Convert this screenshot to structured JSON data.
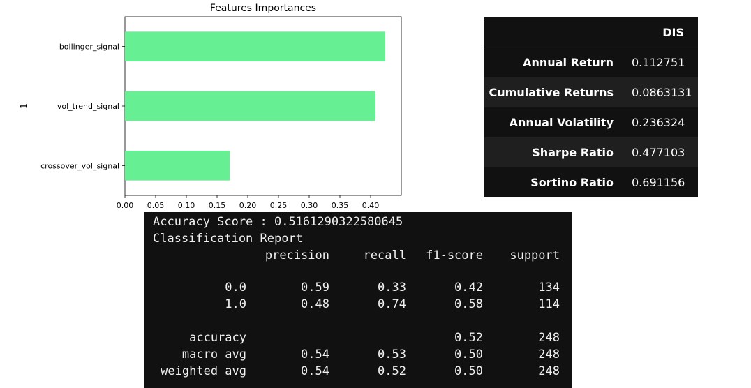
{
  "chart_data": {
    "type": "bar",
    "orientation": "horizontal",
    "title": "Features Importances",
    "ylabel": "1",
    "xlabel": "",
    "categories": [
      "bollinger_signal",
      "vol_trend_signal",
      "crossover_vol_signal"
    ],
    "values": [
      0.424,
      0.408,
      0.171
    ],
    "xlim": [
      0.0,
      0.45
    ],
    "xticks": [
      "0.00",
      "0.05",
      "0.10",
      "0.15",
      "0.20",
      "0.25",
      "0.30",
      "0.35",
      "0.40"
    ],
    "bar_color": "#67ef94",
    "grid": false,
    "legend": "none"
  },
  "stats": {
    "column_header": "DIS",
    "rows": [
      {
        "label": "Annual Return",
        "value": "0.112751"
      },
      {
        "label": "Cumulative Returns",
        "value": "0.0863131"
      },
      {
        "label": "Annual Volatility",
        "value": "0.236324"
      },
      {
        "label": "Sharpe Ratio",
        "value": "0.477103"
      },
      {
        "label": "Sortino Ratio",
        "value": "0.691156"
      }
    ]
  },
  "report": {
    "accuracy_line": "Accuracy Score : 0.5161290322580645",
    "title_line": "Classification Report",
    "headers": [
      "precision",
      "recall",
      "f1-score",
      "support"
    ],
    "rows": [
      {
        "label": "0.0",
        "precision": "0.59",
        "recall": "0.33",
        "f1": "0.42",
        "support": "134"
      },
      {
        "label": "1.0",
        "precision": "0.48",
        "recall": "0.74",
        "f1": "0.58",
        "support": "114"
      },
      {
        "label": "accuracy",
        "precision": "",
        "recall": "",
        "f1": "0.52",
        "support": "248"
      },
      {
        "label": "macro avg",
        "precision": "0.54",
        "recall": "0.53",
        "f1": "0.50",
        "support": "248"
      },
      {
        "label": "weighted avg",
        "precision": "0.54",
        "recall": "0.52",
        "f1": "0.50",
        "support": "248"
      }
    ]
  }
}
